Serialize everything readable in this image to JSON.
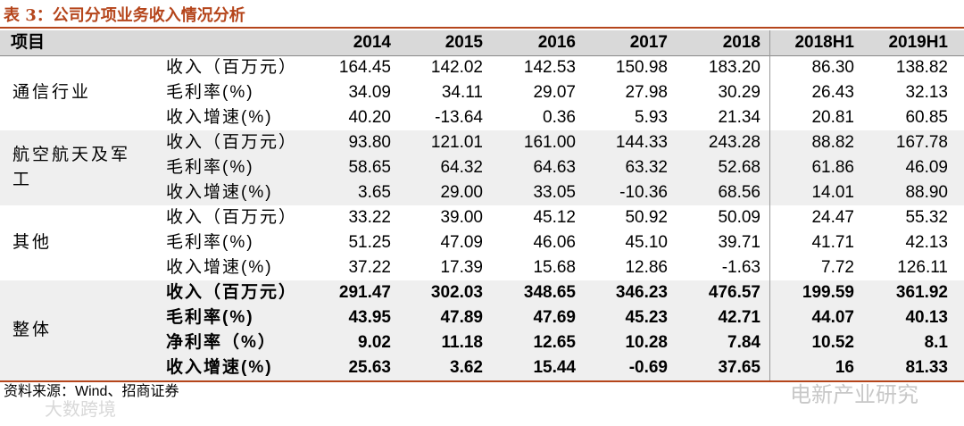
{
  "title": "表 3：公司分项业务收入情况分析",
  "table": {
    "header": [
      "项目",
      "2014",
      "2015",
      "2016",
      "2017",
      "2018",
      "2018H1",
      "2019H1"
    ],
    "groups": [
      {
        "name": "通信行业",
        "rows": [
          [
            "收入（百万元）",
            "164.45",
            "142.02",
            "142.53",
            "150.98",
            "183.20",
            "86.30",
            "138.82"
          ],
          [
            "毛利率(%)",
            "34.09",
            "34.11",
            "29.07",
            "27.98",
            "30.29",
            "26.43",
            "32.13"
          ],
          [
            "收入增速(%)",
            "40.20",
            "-13.64",
            "0.36",
            "5.93",
            "21.34",
            "20.81",
            "60.85"
          ]
        ]
      },
      {
        "name": "航空航天及军工",
        "rows": [
          [
            "收入（百万元）",
            "93.80",
            "121.01",
            "161.00",
            "144.33",
            "243.28",
            "88.82",
            "167.78"
          ],
          [
            "毛利率(%)",
            "58.65",
            "64.32",
            "64.63",
            "63.32",
            "52.68",
            "61.86",
            "46.09"
          ],
          [
            "收入增速(%)",
            "3.65",
            "29.00",
            "33.05",
            "-10.36",
            "68.56",
            "14.01",
            "88.90"
          ]
        ]
      },
      {
        "name": "其他",
        "rows": [
          [
            "收入（百万元）",
            "33.22",
            "39.00",
            "45.12",
            "50.92",
            "50.09",
            "24.47",
            "55.32"
          ],
          [
            "毛利率(%)",
            "51.25",
            "47.09",
            "46.06",
            "45.10",
            "39.71",
            "41.71",
            "42.13"
          ],
          [
            "收入增速(%)",
            "37.22",
            "17.39",
            "15.68",
            "12.86",
            "-1.63",
            "7.72",
            "126.11"
          ]
        ]
      },
      {
        "name": "整体",
        "rows": [
          [
            "收入（百万元）",
            "291.47",
            "302.03",
            "348.65",
            "346.23",
            "476.57",
            "199.59",
            "361.92"
          ],
          [
            "毛利率(%)",
            "43.95",
            "47.89",
            "47.69",
            "45.23",
            "42.71",
            "44.07",
            "40.13"
          ],
          [
            "净利率（%）",
            "9.02",
            "11.18",
            "12.65",
            "10.28",
            "7.84",
            "10.52",
            "8.1"
          ],
          [
            "收入增速(%)",
            "25.63",
            "3.62",
            "15.44",
            "-0.69",
            "37.65",
            "16",
            "81.33"
          ]
        ]
      }
    ]
  },
  "source": "资料来源：Wind、招商证券",
  "watermarks": [
    "电新产业研究",
    "大数跨境"
  ]
}
